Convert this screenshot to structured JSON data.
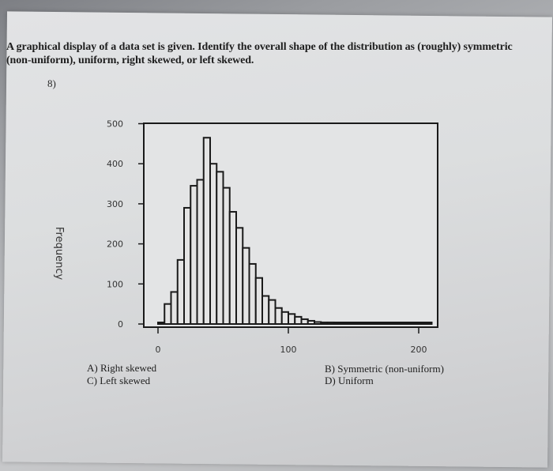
{
  "question": {
    "line1": "A graphical display of a data set is given. Identify the overall shape of the distribution as (roughly) symmetric",
    "line2": "(non-uniform), uniform, right skewed, or left skewed.",
    "number": "8)"
  },
  "choices": {
    "a": "A) Right skewed",
    "b": "B) Symmetric (non-uniform)",
    "c": "C) Left skewed",
    "d": "D) Uniform"
  },
  "chart_data": {
    "type": "bar",
    "title": "",
    "xlabel": "",
    "ylabel": "Frequency",
    "xlim": [
      0,
      210
    ],
    "ylim": [
      0,
      500
    ],
    "xticks": [
      "0",
      "100",
      "200"
    ],
    "yticks": [
      "0",
      "100",
      "200",
      "300",
      "400",
      "500"
    ],
    "bin_width": 5,
    "bin_starts": [
      0,
      5,
      10,
      15,
      20,
      25,
      30,
      35,
      40,
      45,
      50,
      55,
      60,
      65,
      70,
      75,
      80,
      85,
      90,
      95,
      100,
      105,
      110,
      115,
      120,
      125,
      130,
      135,
      140,
      145,
      150,
      155,
      160,
      165,
      170,
      175,
      180,
      185,
      190,
      195,
      200,
      205
    ],
    "values": [
      0,
      50,
      80,
      160,
      290,
      345,
      360,
      465,
      400,
      380,
      340,
      280,
      240,
      190,
      150,
      115,
      70,
      60,
      40,
      30,
      25,
      18,
      12,
      8,
      5,
      4,
      4,
      3,
      2,
      2,
      2,
      1,
      1,
      1,
      1,
      1,
      1,
      1,
      1,
      1,
      1,
      1
    ]
  }
}
